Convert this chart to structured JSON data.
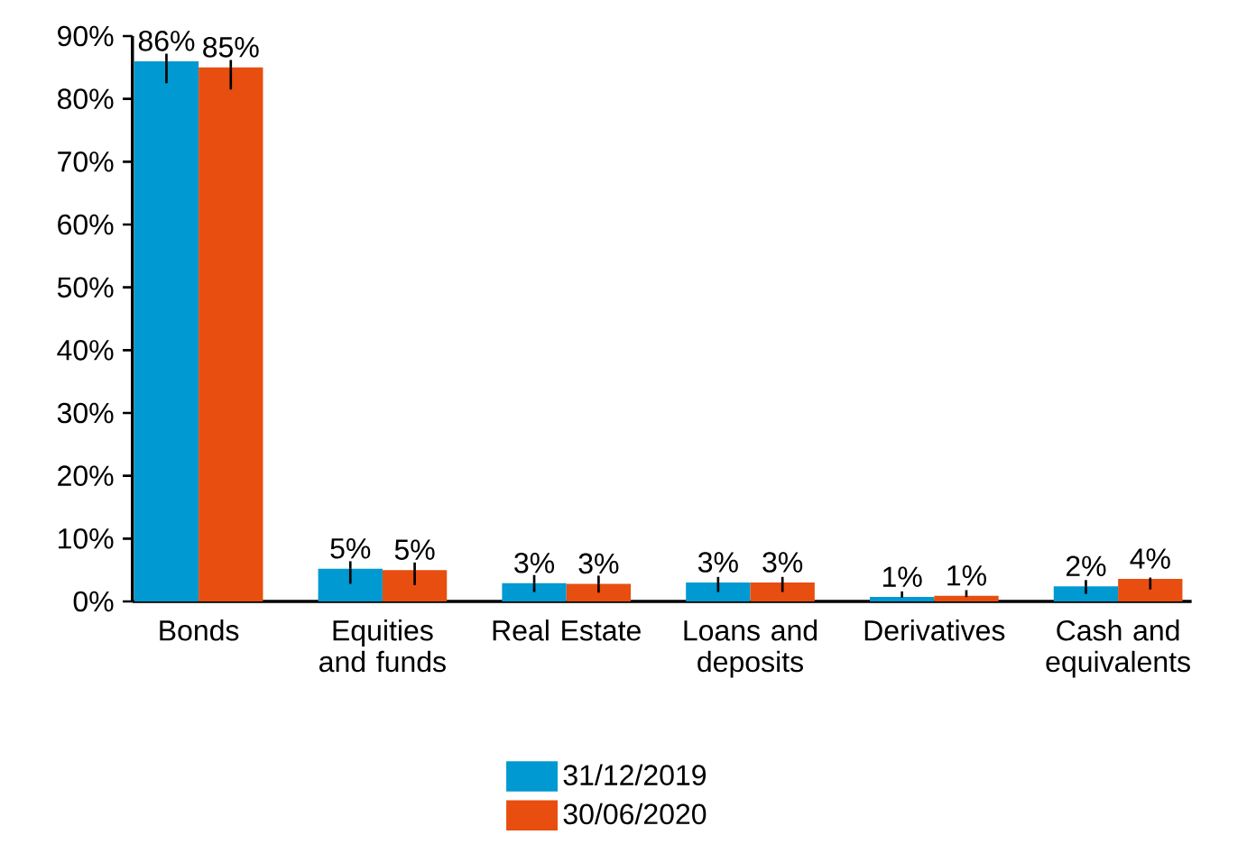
{
  "chart_data": {
    "type": "bar",
    "categories": [
      "Bonds",
      "Equities and funds",
      "Real Estate",
      "Loans and deposits",
      "Derivatives",
      "Cash and equivalents"
    ],
    "series": [
      {
        "name": "31/12/2019",
        "color": "#0099d1",
        "values": [
          86,
          5.2,
          2.9,
          3.0,
          0.7,
          2.4
        ],
        "value_labels": [
          "86%",
          "5%",
          "3%",
          "3%",
          "1%",
          "2%"
        ],
        "errors": [
          [
            82.5,
            87.2
          ],
          [
            2.8,
            6.4
          ],
          [
            1.5,
            4.2
          ],
          [
            1.5,
            3.9
          ],
          [
            0.6,
            1.6
          ],
          [
            1.2,
            3.4
          ]
        ]
      },
      {
        "name": "30/06/2020",
        "color": "#e84e0f",
        "values": [
          85,
          5.0,
          2.8,
          3.0,
          0.9,
          3.6
        ],
        "value_labels": [
          "85%",
          "5%",
          "3%",
          "3%",
          "1%",
          "4%"
        ],
        "errors": [
          [
            81.5,
            86.2
          ],
          [
            2.6,
            6.2
          ],
          [
            1.4,
            4.1
          ],
          [
            1.5,
            3.9
          ],
          [
            0.7,
            1.8
          ],
          [
            1.9,
            3.8
          ]
        ]
      }
    ],
    "ylim": [
      0,
      90
    ],
    "yticks": [
      {
        "value": 0,
        "label": "0%"
      },
      {
        "value": 10,
        "label": "10%"
      },
      {
        "value": 20,
        "label": "20%"
      },
      {
        "value": 30,
        "label": "30%"
      },
      {
        "value": 40,
        "label": "40%"
      },
      {
        "value": 50,
        "label": "50%"
      },
      {
        "value": 60,
        "label": "60%"
      },
      {
        "value": 70,
        "label": "70%"
      },
      {
        "value": 80,
        "label": "80%"
      },
      {
        "value": 90,
        "label": "90%"
      }
    ],
    "grid": false,
    "legend": "bottom"
  }
}
